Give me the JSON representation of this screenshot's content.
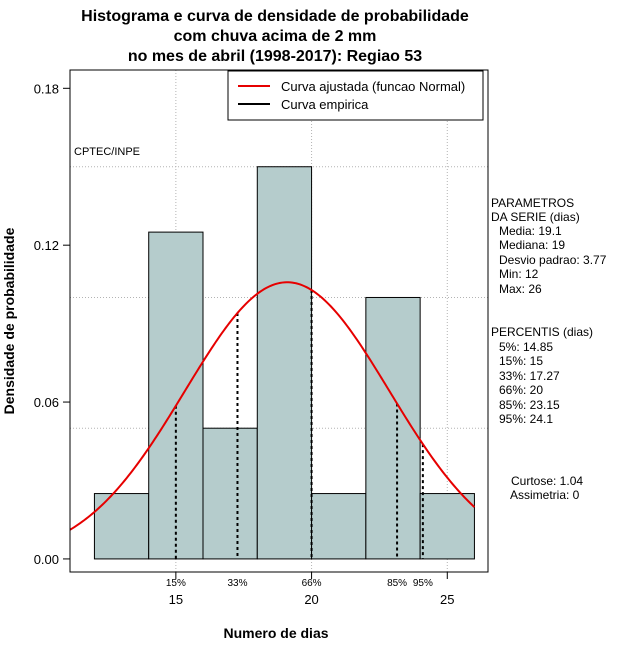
{
  "chart_data": {
    "type": "histogram",
    "title_lines": [
      "Histograma e curva de densidade de probabilidade",
      "com chuva acima de 2 mm",
      "no mes de abril (1998-2017): Regiao 53"
    ],
    "xlabel": "Numero de dias",
    "ylabel": "Densidade de probabilidade",
    "xlim": [
      11.1,
      26.5
    ],
    "ylim": [
      -0.005,
      0.187
    ],
    "x_ticks": [
      15,
      20,
      25
    ],
    "y_ticks": [
      0.0,
      0.06,
      0.12,
      0.18
    ],
    "y_tick_labels": [
      "0.00",
      "0.06",
      "0.12",
      "0.18"
    ],
    "grid_x": [
      15,
      20,
      25
    ],
    "grid_y": [
      0.05,
      0.1,
      0.15
    ],
    "bins": [
      {
        "start": 12,
        "end": 14,
        "density": 0.025
      },
      {
        "start": 14,
        "end": 16,
        "density": 0.125
      },
      {
        "start": 16,
        "end": 18,
        "density": 0.05
      },
      {
        "start": 18,
        "end": 20,
        "density": 0.15
      },
      {
        "start": 20,
        "end": 22,
        "density": 0.025
      },
      {
        "start": 22,
        "end": 24,
        "density": 0.1
      },
      {
        "start": 24,
        "end": 26,
        "density": 0.025
      }
    ],
    "bar_color": "#b5cccc",
    "normal_curve": {
      "mean": 19.1,
      "sd": 3.77,
      "color": "#e60000",
      "from": 11.1,
      "to": 26
    },
    "percentile_lines": [
      {
        "label": "15%",
        "x": 15
      },
      {
        "label": "33%",
        "x": 17.27
      },
      {
        "label": "66%",
        "x": 20
      },
      {
        "label": "85%",
        "x": 23.15
      },
      {
        "label": "95%",
        "x": 24.1
      }
    ],
    "legend": [
      {
        "label": "Curva ajustada (funcao Normal)",
        "color": "#e60000"
      },
      {
        "label": "Curva empirica",
        "color": "#000000"
      }
    ],
    "source_label": "CPTEC/INPE"
  },
  "parametros": {
    "heading": [
      "PARAMETROS",
      "DA SERIE (dias)"
    ],
    "lines": [
      "Media: 19.1",
      "Mediana: 19",
      "Desvio padrao: 3.77",
      "Min: 12",
      "Max: 26"
    ]
  },
  "percentis": {
    "heading": "PERCENTIS (dias)",
    "lines": [
      "5%: 14.85",
      "15%: 15",
      "33%: 17.27",
      "66%: 20",
      "85%: 23.15",
      "95%: 24.1"
    ]
  },
  "shape": {
    "lines": [
      "Curtose: 1.04",
      "Assimetria: 0"
    ]
  }
}
